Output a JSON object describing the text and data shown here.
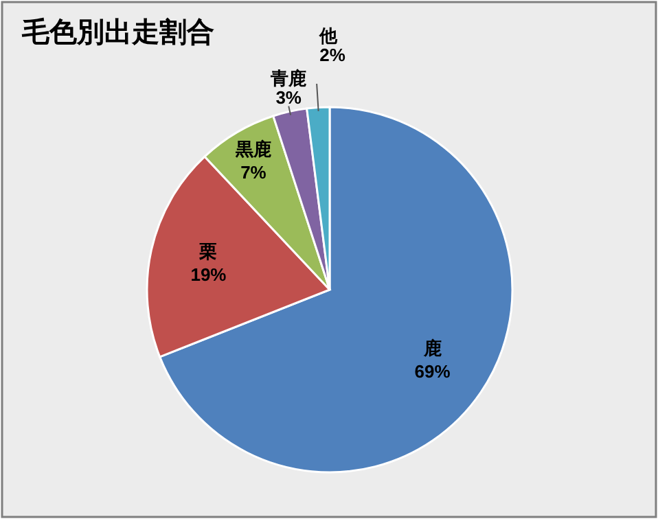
{
  "chart_data": {
    "type": "pie",
    "title": "毛色別出走割合",
    "categories": [
      "鹿",
      "栗",
      "黒鹿",
      "青鹿",
      "他"
    ],
    "values": [
      69,
      19,
      7,
      3,
      2
    ],
    "colors": [
      "#4f81bd",
      "#c0504d",
      "#9bbb59",
      "#8064a2",
      "#4bacc6"
    ],
    "value_labels": [
      "69%",
      "19%",
      "7%",
      "3%",
      "2%"
    ]
  }
}
